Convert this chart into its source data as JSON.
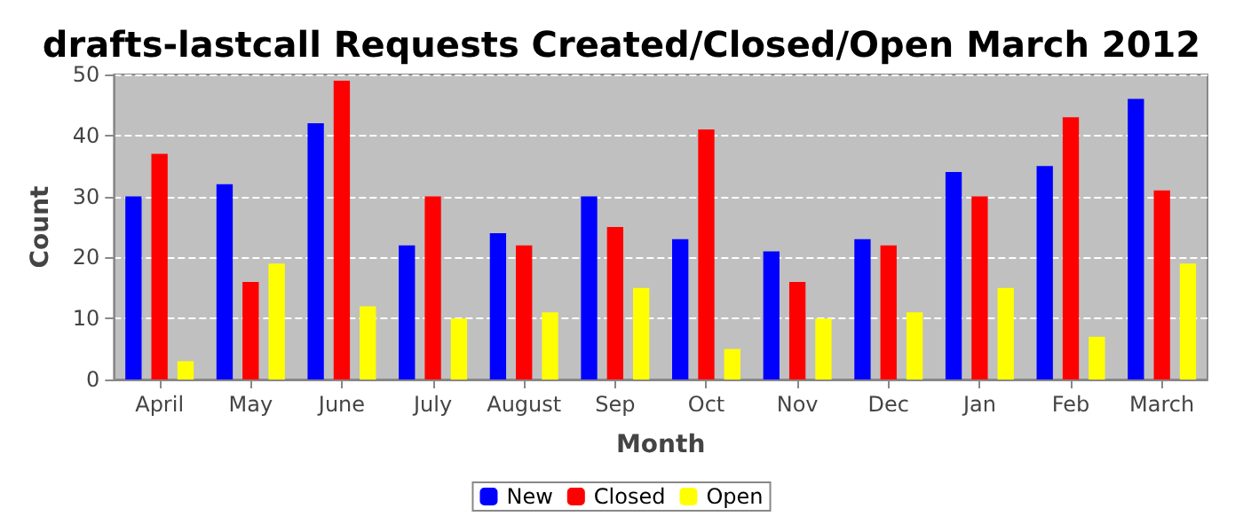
{
  "chart_data": {
    "type": "bar",
    "title": "drafts-lastcall Requests Created/Closed/Open March 2012",
    "xlabel": "Month",
    "ylabel": "Count",
    "categories": [
      "April",
      "May",
      "June",
      "July",
      "August",
      "Sep",
      "Oct",
      "Nov",
      "Dec",
      "Jan",
      "Feb",
      "March"
    ],
    "series": [
      {
        "name": "New",
        "color": "#0000ff",
        "values": [
          30,
          32,
          42,
          22,
          24,
          30,
          23,
          21,
          23,
          34,
          35,
          46
        ]
      },
      {
        "name": "Closed",
        "color": "#ff0000",
        "values": [
          37,
          16,
          49,
          30,
          22,
          25,
          41,
          16,
          22,
          30,
          43,
          31
        ]
      },
      {
        "name": "Open",
        "color": "#ffff00",
        "values": [
          3,
          19,
          12,
          10,
          11,
          15,
          5,
          10,
          11,
          15,
          7,
          19
        ]
      }
    ],
    "ylim": [
      0,
      50
    ],
    "yticks": [
      0,
      10,
      20,
      30,
      40,
      50
    ],
    "grid": "y",
    "legend": "bottom"
  }
}
